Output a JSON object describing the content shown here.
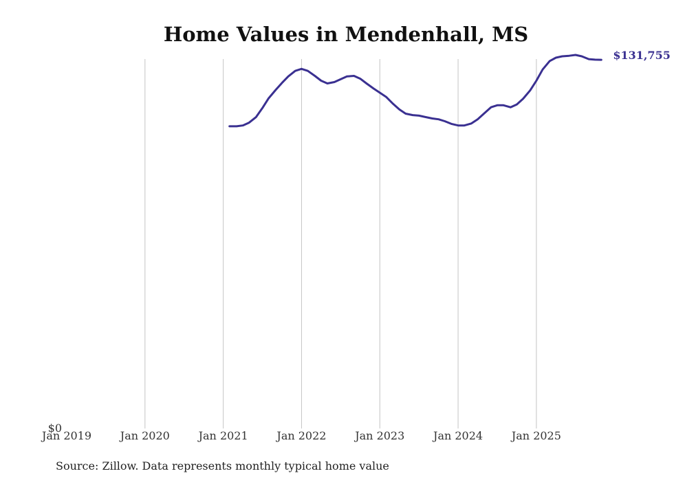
{
  "chart_data": {
    "type": "line",
    "title": "Home Values in Mendenhall, MS",
    "xlabel": "",
    "ylabel": "",
    "x_ticks": [
      "Jan 2019",
      "Jan 2020",
      "Jan 2021",
      "Jan 2022",
      "Jan 2023",
      "Jan 2024",
      "Jan 2025"
    ],
    "y_tick_label": "$0",
    "ylim": [
      0,
      133000
    ],
    "xlim": [
      2019.0,
      2025.95
    ],
    "grid": "vertical",
    "series": [
      {
        "name": "Typical home value",
        "color": "#3a3091",
        "end_label": "$131,755",
        "points": [
          [
            2021.08,
            108000
          ],
          [
            2021.17,
            108000
          ],
          [
            2021.25,
            108300
          ],
          [
            2021.33,
            109300
          ],
          [
            2021.42,
            111300
          ],
          [
            2021.5,
            114500
          ],
          [
            2021.58,
            118000
          ],
          [
            2021.67,
            121000
          ],
          [
            2021.75,
            123500
          ],
          [
            2021.83,
            125800
          ],
          [
            2021.92,
            127800
          ],
          [
            2022.0,
            128500
          ],
          [
            2022.08,
            127800
          ],
          [
            2022.17,
            126000
          ],
          [
            2022.25,
            124300
          ],
          [
            2022.33,
            123300
          ],
          [
            2022.42,
            123800
          ],
          [
            2022.5,
            124800
          ],
          [
            2022.58,
            125800
          ],
          [
            2022.67,
            126000
          ],
          [
            2022.75,
            125000
          ],
          [
            2022.83,
            123300
          ],
          [
            2022.92,
            121500
          ],
          [
            2023.0,
            120000
          ],
          [
            2023.08,
            118500
          ],
          [
            2023.17,
            116000
          ],
          [
            2023.25,
            114000
          ],
          [
            2023.33,
            112500
          ],
          [
            2023.42,
            112000
          ],
          [
            2023.5,
            111800
          ],
          [
            2023.58,
            111300
          ],
          [
            2023.67,
            110800
          ],
          [
            2023.75,
            110500
          ],
          [
            2023.83,
            109800
          ],
          [
            2023.92,
            108800
          ],
          [
            2024.0,
            108300
          ],
          [
            2024.08,
            108300
          ],
          [
            2024.17,
            109000
          ],
          [
            2024.25,
            110500
          ],
          [
            2024.33,
            112500
          ],
          [
            2024.42,
            114800
          ],
          [
            2024.5,
            115500
          ],
          [
            2024.58,
            115500
          ],
          [
            2024.67,
            114800
          ],
          [
            2024.75,
            115800
          ],
          [
            2024.83,
            117800
          ],
          [
            2024.92,
            120800
          ],
          [
            2025.0,
            124300
          ],
          [
            2025.08,
            128300
          ],
          [
            2025.17,
            131300
          ],
          [
            2025.25,
            132500
          ],
          [
            2025.33,
            133000
          ],
          [
            2025.42,
            133200
          ],
          [
            2025.5,
            133500
          ],
          [
            2025.58,
            133000
          ],
          [
            2025.67,
            132000
          ],
          [
            2025.75,
            131800
          ],
          [
            2025.83,
            131755
          ]
        ]
      }
    ]
  },
  "footer": {
    "source": "Source: Zillow. Data represents monthly typical home value"
  }
}
